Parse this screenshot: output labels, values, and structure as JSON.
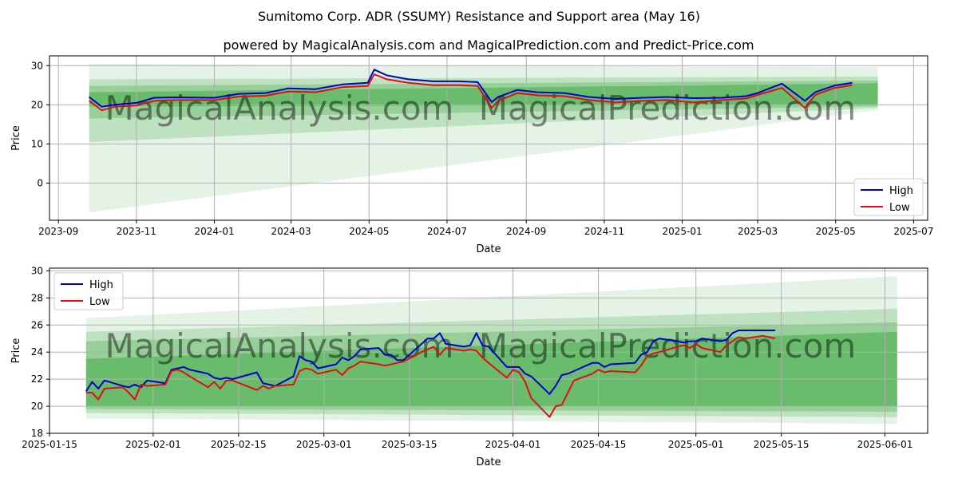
{
  "figure": {
    "title": "Sumitomo Corp. ADR (SSUMY) Resistance and Support area (May 16)",
    "subtitle": "powered by MagicalAnalysis.com and MagicalPrediction.com and Predict-Price.com",
    "watermarks": [
      "MagicalAnalysis.com",
      "MagicalPrediction.com"
    ]
  },
  "colors": {
    "high": "#0000cc",
    "low": "#dd1111",
    "band": "#4caf50",
    "grid": "#b0b0b0"
  },
  "chart_data": [
    {
      "type": "line",
      "xlabel": "Date",
      "ylabel": "Price",
      "xlim": [
        "2023-08-25",
        "2025-07-12"
      ],
      "ylim": [
        -9.5,
        32.5
      ],
      "yticks": [
        0,
        10,
        20,
        30
      ],
      "xticks": [
        "2023-09",
        "2023-11",
        "2024-01",
        "2024-03",
        "2024-05",
        "2024-07",
        "2024-09",
        "2024-11",
        "2025-01",
        "2025-03",
        "2025-05",
        "2025-07"
      ],
      "grid": true,
      "legend": {
        "position": "lower-right",
        "entries": [
          "High",
          "Low"
        ]
      },
      "bands": {
        "x": [
          "2023-09-25",
          "2025-06-03"
        ],
        "opacity": [
          0.15,
          0.25,
          0.35,
          0.6
        ],
        "upper": [
          [
            30.5,
            29.6
          ],
          [
            26.5,
            27.2
          ],
          [
            24.8,
            26.2
          ],
          [
            23.2,
            25.5
          ]
        ],
        "lower": [
          [
            -7.5,
            18.7
          ],
          [
            10.5,
            19.2
          ],
          [
            16.5,
            19.6
          ],
          [
            19.6,
            20.0
          ]
        ]
      },
      "series": [
        {
          "name": "High",
          "x": [
            "2023-09-25",
            "2023-10-05",
            "2023-10-15",
            "2023-11-01",
            "2023-11-15",
            "2023-12-01",
            "2024-01-01",
            "2024-01-20",
            "2024-02-10",
            "2024-02-28",
            "2024-03-20",
            "2024-04-10",
            "2024-04-30",
            "2024-05-05",
            "2024-05-15",
            "2024-06-01",
            "2024-06-20",
            "2024-07-10",
            "2024-07-25",
            "2024-08-05",
            "2024-08-10",
            "2024-08-25",
            "2024-09-10",
            "2024-10-01",
            "2024-10-20",
            "2024-11-10",
            "2024-12-01",
            "2024-12-20",
            "2025-01-10",
            "2025-02-01",
            "2025-02-20",
            "2025-03-01",
            "2025-03-20",
            "2025-04-07",
            "2025-04-15",
            "2025-04-30",
            "2025-05-14"
          ],
          "values": [
            22.0,
            19.5,
            20.0,
            20.5,
            21.8,
            21.9,
            21.8,
            22.8,
            23.0,
            24.2,
            24.0,
            25.2,
            25.6,
            29.0,
            27.5,
            26.5,
            26.0,
            26.0,
            25.8,
            20.7,
            22.0,
            23.8,
            23.2,
            23.0,
            22.0,
            21.5,
            21.8,
            22.0,
            21.7,
            21.8,
            22.2,
            23.0,
            25.4,
            21.0,
            23.2,
            24.9,
            25.6
          ]
        },
        {
          "name": "Low",
          "x": [
            "2023-09-25",
            "2023-10-05",
            "2023-10-15",
            "2023-11-01",
            "2023-11-15",
            "2023-12-01",
            "2024-01-01",
            "2024-01-20",
            "2024-02-10",
            "2024-02-28",
            "2024-03-20",
            "2024-04-10",
            "2024-04-30",
            "2024-05-05",
            "2024-05-15",
            "2024-06-01",
            "2024-06-20",
            "2024-07-10",
            "2024-07-25",
            "2024-08-05",
            "2024-08-10",
            "2024-08-25",
            "2024-09-10",
            "2024-10-01",
            "2024-10-20",
            "2024-11-10",
            "2024-12-01",
            "2024-12-20",
            "2025-01-10",
            "2025-02-01",
            "2025-02-20",
            "2025-03-01",
            "2025-03-20",
            "2025-04-07",
            "2025-04-15",
            "2025-04-30",
            "2025-05-14"
          ],
          "values": [
            21.0,
            18.6,
            19.5,
            19.8,
            21.0,
            21.2,
            21.2,
            22.1,
            22.3,
            23.4,
            23.2,
            24.5,
            24.8,
            27.8,
            26.5,
            25.6,
            25.0,
            25.0,
            24.8,
            19.2,
            21.0,
            23.0,
            22.4,
            22.2,
            21.2,
            20.6,
            21.0,
            21.2,
            20.6,
            21.2,
            21.6,
            22.5,
            24.3,
            19.2,
            22.5,
            24.3,
            25.0
          ]
        }
      ]
    },
    {
      "type": "line",
      "xlabel": "Date",
      "ylabel": "Price",
      "xlim": [
        "2025-01-15",
        "2025-06-08"
      ],
      "ylim": [
        18,
        30.2
      ],
      "yticks": [
        18,
        20,
        22,
        24,
        26,
        28,
        30
      ],
      "xticks": [
        "2025-01-15",
        "2025-02-01",
        "2025-02-15",
        "2025-03-01",
        "2025-03-15",
        "2025-04-01",
        "2025-04-15",
        "2025-05-01",
        "2025-05-15",
        "2025-06-01"
      ],
      "grid": true,
      "legend": {
        "position": "upper-left",
        "entries": [
          "High",
          "Low"
        ]
      },
      "bands": {
        "x": [
          "2025-01-21",
          "2025-06-03"
        ],
        "opacity": [
          0.15,
          0.25,
          0.35,
          0.6
        ],
        "upper": [
          [
            26.5,
            29.6
          ],
          [
            25.5,
            27.2
          ],
          [
            24.8,
            26.2
          ],
          [
            23.5,
            25.5
          ]
        ],
        "lower": [
          [
            19.1,
            18.7
          ],
          [
            19.5,
            19.2
          ],
          [
            19.8,
            19.6
          ],
          [
            20.0,
            20.0
          ]
        ]
      },
      "series": [
        {
          "name": "High",
          "x": [
            "2025-01-21",
            "2025-01-22",
            "2025-01-23",
            "2025-01-24",
            "2025-01-27",
            "2025-01-28",
            "2025-01-29",
            "2025-01-30",
            "2025-01-31",
            "2025-02-03",
            "2025-02-04",
            "2025-02-05",
            "2025-02-06",
            "2025-02-07",
            "2025-02-10",
            "2025-02-11",
            "2025-02-12",
            "2025-02-13",
            "2025-02-14",
            "2025-02-18",
            "2025-02-19",
            "2025-02-20",
            "2025-02-21",
            "2025-02-24",
            "2025-02-25",
            "2025-02-26",
            "2025-02-27",
            "2025-02-28",
            "2025-03-03",
            "2025-03-04",
            "2025-03-05",
            "2025-03-06",
            "2025-03-07",
            "2025-03-10",
            "2025-03-11",
            "2025-03-12",
            "2025-03-13",
            "2025-03-14",
            "2025-03-17",
            "2025-03-18",
            "2025-03-19",
            "2025-03-20",
            "2025-03-21",
            "2025-03-24",
            "2025-03-25",
            "2025-03-26",
            "2025-03-27",
            "2025-03-28",
            "2025-03-31",
            "2025-04-01",
            "2025-04-02",
            "2025-04-03",
            "2025-04-04",
            "2025-04-07",
            "2025-04-08",
            "2025-04-09",
            "2025-04-10",
            "2025-04-11",
            "2025-04-14",
            "2025-04-15",
            "2025-04-16",
            "2025-04-17",
            "2025-04-21",
            "2025-04-22",
            "2025-04-23",
            "2025-04-24",
            "2025-04-25",
            "2025-04-28",
            "2025-04-29",
            "2025-04-30",
            "2025-05-01",
            "2025-05-02",
            "2025-05-05",
            "2025-05-06",
            "2025-05-07",
            "2025-05-08",
            "2025-05-09",
            "2025-05-12",
            "2025-05-13",
            "2025-05-14"
          ],
          "values": [
            21.1,
            21.8,
            21.3,
            21.9,
            21.5,
            21.4,
            21.6,
            21.4,
            21.9,
            21.7,
            22.7,
            22.8,
            22.9,
            22.7,
            22.4,
            22.1,
            22.0,
            22.1,
            22.0,
            22.5,
            21.7,
            21.6,
            21.5,
            22.2,
            23.7,
            23.4,
            23.3,
            22.8,
            23.1,
            23.6,
            23.4,
            23.7,
            24.2,
            24.3,
            23.8,
            23.8,
            23.4,
            23.4,
            24.6,
            25.0,
            25.0,
            25.4,
            24.6,
            24.4,
            24.5,
            25.4,
            24.5,
            24.4,
            22.9,
            22.9,
            22.9,
            22.4,
            22.2,
            20.9,
            21.5,
            22.3,
            22.4,
            22.6,
            23.2,
            23.2,
            22.9,
            23.1,
            23.2,
            23.8,
            24.0,
            24.8,
            25.0,
            24.8,
            24.7,
            24.8,
            24.8,
            25.0,
            24.8,
            24.9,
            25.4,
            25.6,
            25.6,
            25.6,
            25.6,
            25.6
          ]
        },
        {
          "name": "Low",
          "x": [
            "2025-01-21",
            "2025-01-22",
            "2025-01-23",
            "2025-01-24",
            "2025-01-27",
            "2025-01-28",
            "2025-01-29",
            "2025-01-30",
            "2025-01-31",
            "2025-02-03",
            "2025-02-04",
            "2025-02-05",
            "2025-02-06",
            "2025-02-07",
            "2025-02-10",
            "2025-02-11",
            "2025-02-12",
            "2025-02-13",
            "2025-02-14",
            "2025-02-18",
            "2025-02-19",
            "2025-02-20",
            "2025-02-21",
            "2025-02-24",
            "2025-02-25",
            "2025-02-26",
            "2025-02-27",
            "2025-02-28",
            "2025-03-03",
            "2025-03-04",
            "2025-03-05",
            "2025-03-06",
            "2025-03-07",
            "2025-03-10",
            "2025-03-11",
            "2025-03-12",
            "2025-03-13",
            "2025-03-14",
            "2025-03-17",
            "2025-03-18",
            "2025-03-19",
            "2025-03-20",
            "2025-03-21",
            "2025-03-24",
            "2025-03-25",
            "2025-03-26",
            "2025-03-27",
            "2025-03-28",
            "2025-03-31",
            "2025-04-01",
            "2025-04-02",
            "2025-04-03",
            "2025-04-04",
            "2025-04-07",
            "2025-04-08",
            "2025-04-09",
            "2025-04-10",
            "2025-04-11",
            "2025-04-14",
            "2025-04-15",
            "2025-04-16",
            "2025-04-17",
            "2025-04-21",
            "2025-04-22",
            "2025-04-23",
            "2025-04-24",
            "2025-04-25",
            "2025-04-28",
            "2025-04-29",
            "2025-04-30",
            "2025-05-01",
            "2025-05-02",
            "2025-05-05",
            "2025-05-06",
            "2025-05-07",
            "2025-05-08",
            "2025-05-09",
            "2025-05-12",
            "2025-05-13",
            "2025-05-14"
          ],
          "values": [
            21.0,
            21.0,
            20.5,
            21.3,
            21.4,
            21.0,
            20.5,
            21.6,
            21.5,
            21.6,
            22.6,
            22.7,
            22.5,
            22.2,
            21.4,
            21.8,
            21.3,
            21.9,
            21.9,
            21.2,
            21.5,
            21.3,
            21.5,
            21.6,
            22.6,
            22.8,
            22.7,
            22.4,
            22.7,
            22.3,
            22.8,
            23.0,
            23.3,
            23.1,
            23.0,
            23.1,
            23.2,
            23.3,
            24.0,
            24.2,
            24.4,
            23.8,
            24.3,
            24.1,
            24.2,
            24.1,
            23.6,
            23.2,
            22.1,
            22.7,
            22.5,
            21.8,
            20.6,
            19.2,
            20.0,
            20.1,
            21.0,
            21.9,
            22.4,
            22.7,
            22.5,
            22.6,
            22.5,
            23.0,
            23.7,
            23.9,
            24.0,
            24.4,
            24.5,
            24.3,
            24.6,
            24.3,
            24.0,
            24.5,
            24.8,
            25.1,
            25.0,
            25.2,
            25.1,
            25.0
          ]
        }
      ]
    }
  ]
}
